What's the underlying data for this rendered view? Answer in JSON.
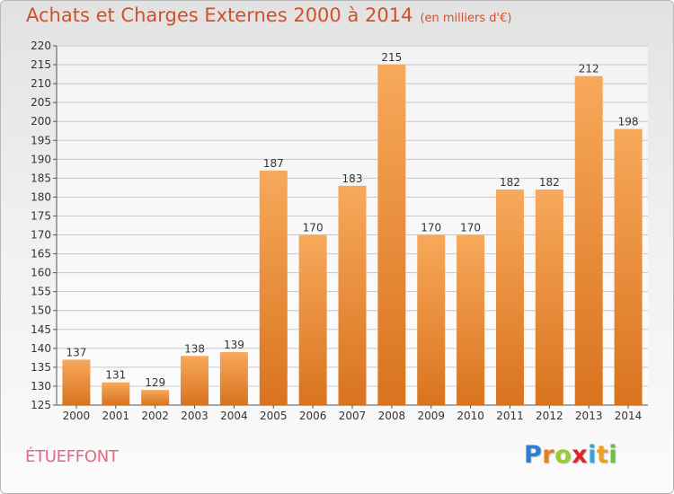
{
  "title": "Achats et Charges Externes 2000 à 2014",
  "subtitle": "(en milliers d'€)",
  "commune": "ÉTUEFFONT",
  "logo": {
    "letters": [
      "P",
      "r",
      "o",
      "x",
      "i",
      "t",
      "i"
    ],
    "colors": [
      "#2d7fc8",
      "#e87d1e",
      "#9acd32",
      "#d9262b",
      "#3aa0d8",
      "#f0a020",
      "#6cbf3a"
    ]
  },
  "colors": {
    "bar_light": "#f7a95a",
    "bar_dark": "#d9731f",
    "title": "#d44f27"
  },
  "chart_data": {
    "type": "bar",
    "categories": [
      "2000",
      "2001",
      "2002",
      "2003",
      "2004",
      "2005",
      "2006",
      "2007",
      "2008",
      "2009",
      "2010",
      "2011",
      "2012",
      "2013",
      "2014"
    ],
    "values": [
      137,
      131,
      129,
      138,
      139,
      187,
      170,
      183,
      215,
      170,
      170,
      182,
      182,
      212,
      198
    ],
    "title": "Achats et Charges Externes 2000 à 2014",
    "subtitle": "(en milliers d'€)",
    "xlabel": "",
    "ylabel": "",
    "ylim": [
      125,
      220
    ],
    "yticks": [
      125,
      130,
      135,
      140,
      145,
      150,
      155,
      160,
      165,
      170,
      175,
      180,
      185,
      190,
      195,
      200,
      205,
      210,
      215,
      220
    ],
    "grid": true,
    "legend": "none"
  }
}
